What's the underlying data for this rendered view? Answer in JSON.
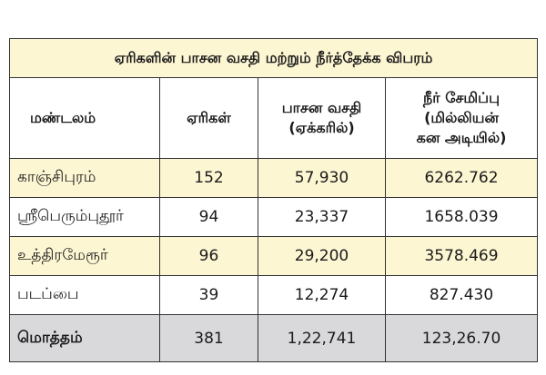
{
  "table": {
    "title": "ஏரிகளின் பாசன வசதி மற்றும் நீர்த்தேக்க விபரம்",
    "header": [
      [
        "மண்டலம்"
      ],
      [
        "ஏரிகள்"
      ],
      [
        "பாசன வசதி",
        "(ஏக்கரில்)"
      ],
      [
        "நீர் சேமிப்பு",
        "(மில்லியன்",
        "கன அடியில்)"
      ]
    ],
    "rows": [
      [
        "காஞ்சிபுரம்",
        "152",
        "57,930",
        "6262.762"
      ],
      [
        "ஸ்ரீபெரும்புதூர்",
        "94",
        "23,337",
        "1658.039"
      ],
      [
        "உத்திரமேரூர்",
        "96",
        "29,200",
        "3578.469"
      ],
      [
        "படப்பை",
        "39",
        "12,274",
        "827.430"
      ]
    ],
    "total": [
      "மொத்தம்",
      "381",
      "1,22,741",
      "123,26.70"
    ]
  }
}
